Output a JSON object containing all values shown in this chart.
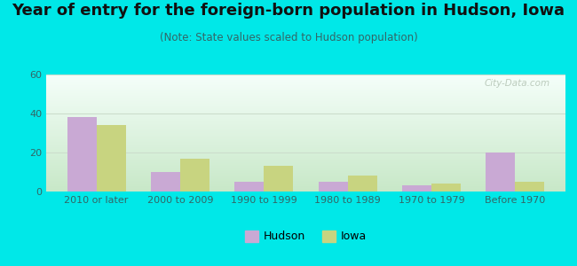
{
  "title": "Year of entry for the foreign-born population in Hudson, Iowa",
  "subtitle": "(Note: State values scaled to Hudson population)",
  "categories": [
    "2010 or later",
    "2000 to 2009",
    "1990 to 1999",
    "1980 to 1989",
    "1970 to 1979",
    "Before 1970"
  ],
  "hudson_values": [
    38,
    10,
    5,
    5,
    3,
    20
  ],
  "iowa_values": [
    34,
    17,
    13,
    8,
    4,
    5
  ],
  "hudson_color": "#c9a9d4",
  "iowa_color": "#c8d480",
  "background_color": "#00e8e8",
  "gradient_top": "#f5fffa",
  "gradient_bottom": "#c8e8c8",
  "ylim": [
    0,
    60
  ],
  "yticks": [
    0,
    20,
    40,
    60
  ],
  "bar_width": 0.35,
  "legend_labels": [
    "Hudson",
    "Iowa"
  ],
  "watermark": "City-Data.com",
  "title_fontsize": 13,
  "subtitle_fontsize": 8.5,
  "tick_fontsize": 8,
  "title_color": "#111111",
  "subtitle_color": "#336666",
  "tick_color": "#336666"
}
